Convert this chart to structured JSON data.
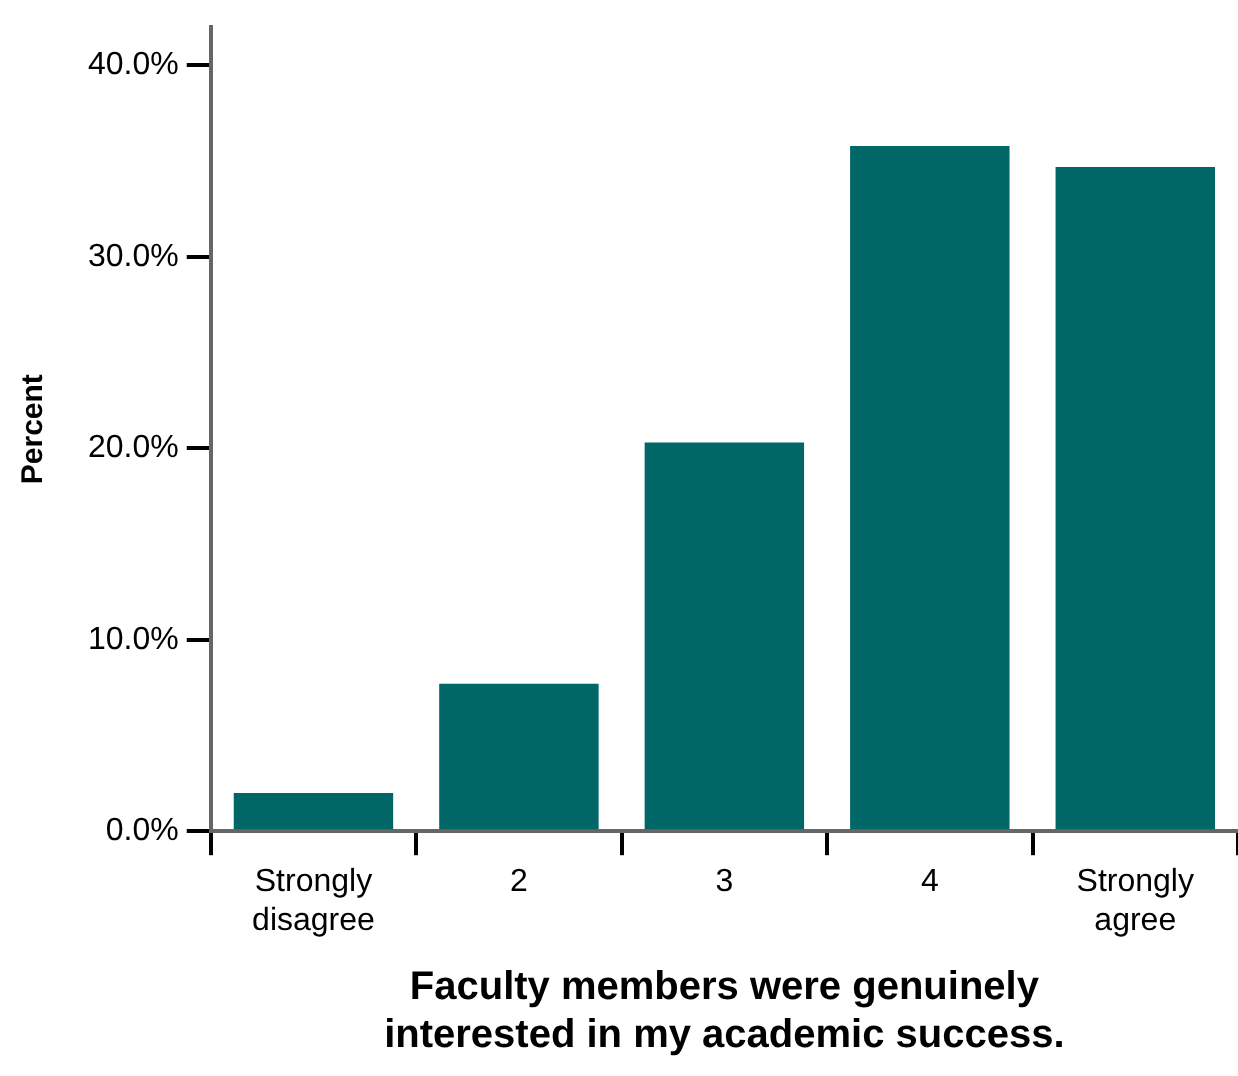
{
  "chart_data": {
    "type": "bar",
    "xlabel": "Faculty members were genuinely interested in my academic success.",
    "ylabel": "Percent",
    "categories": [
      "Strongly disagree",
      "2",
      "3",
      "4",
      "Strongly agree"
    ],
    "values": [
      2.0,
      7.7,
      20.3,
      35.8,
      34.7
    ],
    "color": "#006766",
    "ylim": [
      0,
      42
    ],
    "yticks": [
      {
        "value": 0,
        "label": "0.0%"
      },
      {
        "value": 10,
        "label": "10.0%"
      },
      {
        "value": 20,
        "label": "20.0%"
      },
      {
        "value": 30,
        "label": "30.0%"
      },
      {
        "value": 40,
        "label": "40.0%"
      }
    ],
    "grid": false,
    "legend": false
  }
}
